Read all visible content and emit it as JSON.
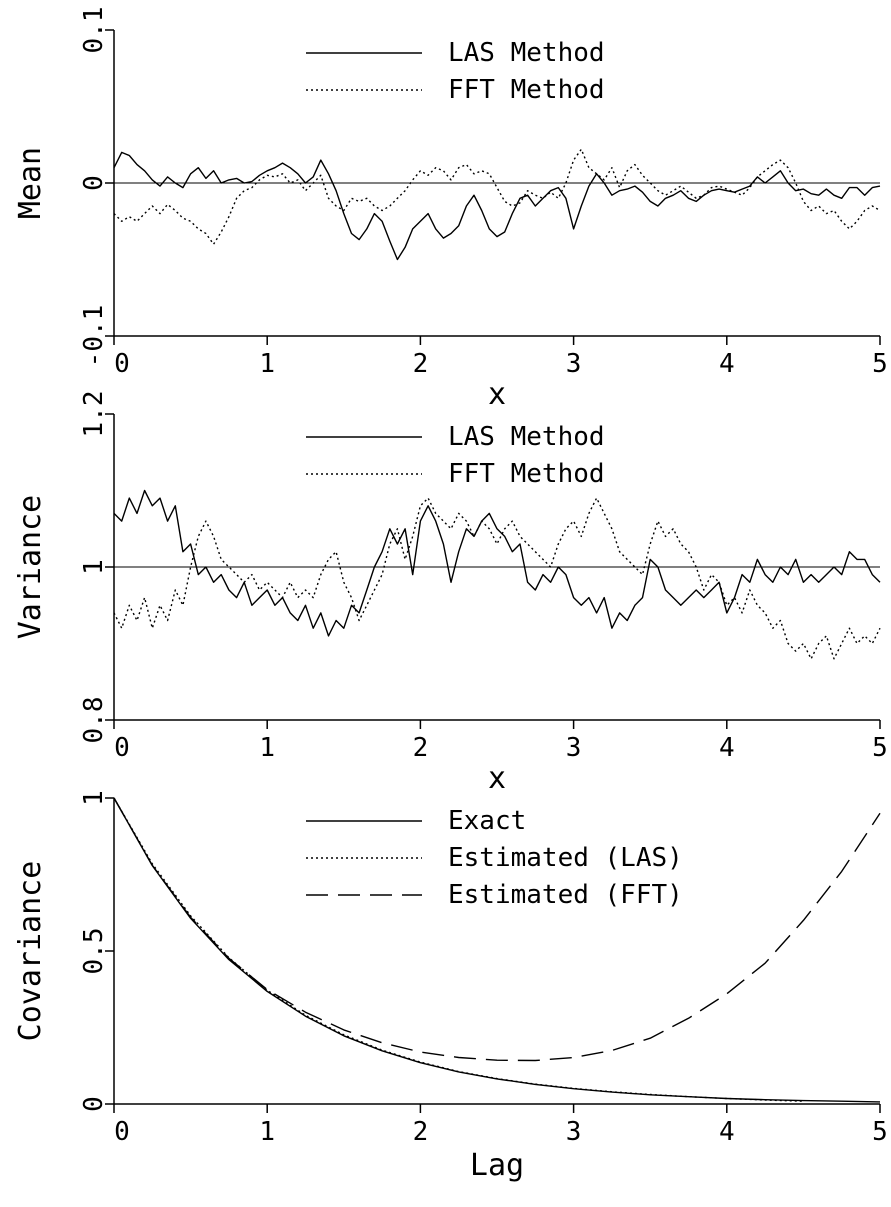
{
  "chart_data": [
    {
      "type": "line",
      "xlabel": "x",
      "ylabel": "Mean",
      "xlim": [
        0,
        5
      ],
      "ylim": [
        -0.1,
        0.1
      ],
      "xticks": [
        "0",
        "1",
        "2",
        "3",
        "4",
        "5"
      ],
      "yticks": [
        "-0.1",
        "0",
        "0.1"
      ],
      "reference_line": 0,
      "legend_position": "top-center",
      "series": [
        {
          "name": "LAS Method",
          "style": "solid",
          "x": [
            0,
            0.05,
            0.1,
            0.15,
            0.2,
            0.25,
            0.3,
            0.35,
            0.4,
            0.45,
            0.5,
            0.55,
            0.6,
            0.65,
            0.7,
            0.75,
            0.8,
            0.85,
            0.9,
            0.95,
            1,
            1.05,
            1.1,
            1.15,
            1.2,
            1.25,
            1.3,
            1.35,
            1.4,
            1.45,
            1.5,
            1.55,
            1.6,
            1.65,
            1.7,
            1.75,
            1.8,
            1.85,
            1.9,
            1.95,
            2,
            2.05,
            2.1,
            2.15,
            2.2,
            2.25,
            2.3,
            2.35,
            2.4,
            2.45,
            2.5,
            2.55,
            2.6,
            2.65,
            2.7,
            2.75,
            2.8,
            2.85,
            2.9,
            2.95,
            3,
            3.05,
            3.1,
            3.15,
            3.2,
            3.25,
            3.3,
            3.35,
            3.4,
            3.45,
            3.5,
            3.55,
            3.6,
            3.65,
            3.7,
            3.75,
            3.8,
            3.85,
            3.9,
            3.95,
            4,
            4.05,
            4.1,
            4.15,
            4.2,
            4.25,
            4.3,
            4.35,
            4.4,
            4.45,
            4.5,
            4.55,
            4.6,
            4.65,
            4.7,
            4.75,
            4.8,
            4.85,
            4.9,
            4.95,
            5
          ],
          "values": [
            0.01,
            0.02,
            0.018,
            0.012,
            0.008,
            0.002,
            -0.002,
            0.004,
            0.0,
            -0.003,
            0.006,
            0.01,
            0.003,
            0.008,
            0.0,
            0.002,
            0.003,
            0.0,
            0.001,
            0.005,
            0.008,
            0.01,
            0.013,
            0.01,
            0.006,
            0.0,
            0.004,
            0.015,
            0.006,
            -0.005,
            -0.02,
            -0.033,
            -0.037,
            -0.03,
            -0.02,
            -0.025,
            -0.038,
            -0.05,
            -0.042,
            -0.03,
            -0.025,
            -0.02,
            -0.03,
            -0.036,
            -0.033,
            -0.028,
            -0.015,
            -0.008,
            -0.018,
            -0.03,
            -0.035,
            -0.032,
            -0.02,
            -0.01,
            -0.008,
            -0.015,
            -0.01,
            -0.005,
            -0.003,
            -0.01,
            -0.03,
            -0.015,
            -0.002,
            0.006,
            0.0,
            -0.008,
            -0.005,
            -0.004,
            -0.002,
            -0.006,
            -0.012,
            -0.015,
            -0.01,
            -0.008,
            -0.005,
            -0.01,
            -0.012,
            -0.008,
            -0.005,
            -0.004,
            -0.005,
            -0.006,
            -0.004,
            -0.002,
            0.004,
            0.0,
            0.004,
            0.008,
            0.0,
            -0.005,
            -0.004,
            -0.007,
            -0.008,
            -0.004,
            -0.008,
            -0.01,
            -0.003,
            -0.003,
            -0.008,
            -0.003,
            -0.002
          ]
        },
        {
          "name": "FFT Method",
          "style": "dotted",
          "x": [
            0,
            0.05,
            0.1,
            0.15,
            0.2,
            0.25,
            0.3,
            0.35,
            0.4,
            0.45,
            0.5,
            0.55,
            0.6,
            0.65,
            0.7,
            0.75,
            0.8,
            0.85,
            0.9,
            0.95,
            1,
            1.05,
            1.1,
            1.15,
            1.2,
            1.25,
            1.3,
            1.35,
            1.4,
            1.45,
            1.5,
            1.55,
            1.6,
            1.65,
            1.7,
            1.75,
            1.8,
            1.85,
            1.9,
            1.95,
            2,
            2.05,
            2.1,
            2.15,
            2.2,
            2.25,
            2.3,
            2.35,
            2.4,
            2.45,
            2.5,
            2.55,
            2.6,
            2.65,
            2.7,
            2.75,
            2.8,
            2.85,
            2.9,
            2.95,
            3,
            3.05,
            3.1,
            3.15,
            3.2,
            3.25,
            3.3,
            3.35,
            3.4,
            3.45,
            3.5,
            3.55,
            3.6,
            3.65,
            3.7,
            3.75,
            3.8,
            3.85,
            3.9,
            3.95,
            4,
            4.05,
            4.1,
            4.15,
            4.2,
            4.25,
            4.3,
            4.35,
            4.4,
            4.45,
            4.5,
            4.55,
            4.6,
            4.65,
            4.7,
            4.75,
            4.8,
            4.85,
            4.9,
            4.95,
            5
          ],
          "values": [
            -0.02,
            -0.025,
            -0.022,
            -0.025,
            -0.02,
            -0.015,
            -0.02,
            -0.014,
            -0.018,
            -0.023,
            -0.025,
            -0.03,
            -0.033,
            -0.04,
            -0.032,
            -0.022,
            -0.01,
            -0.005,
            -0.003,
            0.002,
            0.005,
            0.004,
            0.006,
            0.0,
            0.002,
            -0.005,
            0.0,
            0.005,
            -0.01,
            -0.015,
            -0.018,
            -0.01,
            -0.012,
            -0.01,
            -0.015,
            -0.018,
            -0.015,
            -0.01,
            -0.005,
            0.002,
            0.008,
            0.005,
            0.01,
            0.008,
            0.002,
            0.01,
            0.012,
            0.006,
            0.008,
            0.006,
            -0.003,
            -0.012,
            -0.015,
            -0.013,
            -0.005,
            -0.008,
            -0.01,
            -0.006,
            -0.01,
            0.0,
            0.015,
            0.022,
            0.01,
            0.006,
            0.002,
            0.01,
            -0.003,
            0.008,
            0.012,
            0.005,
            0.0,
            -0.005,
            -0.008,
            -0.005,
            -0.002,
            -0.006,
            -0.01,
            -0.008,
            -0.003,
            -0.002,
            -0.004,
            -0.006,
            -0.008,
            -0.003,
            0.004,
            0.008,
            0.012,
            0.015,
            0.01,
            0.0,
            -0.012,
            -0.018,
            -0.015,
            -0.02,
            -0.018,
            -0.025,
            -0.03,
            -0.025,
            -0.018,
            -0.015,
            -0.018
          ]
        }
      ]
    },
    {
      "type": "line",
      "xlabel": "x",
      "ylabel": "Variance",
      "xlim": [
        0,
        5
      ],
      "ylim": [
        0.8,
        1.2
      ],
      "xticks": [
        "0",
        "1",
        "2",
        "3",
        "4",
        "5"
      ],
      "yticks": [
        "0.8",
        "1",
        "1.2"
      ],
      "reference_line": 1,
      "legend_position": "top-center",
      "series": [
        {
          "name": "LAS Method",
          "style": "solid",
          "x": [
            0,
            0.05,
            0.1,
            0.15,
            0.2,
            0.25,
            0.3,
            0.35,
            0.4,
            0.45,
            0.5,
            0.55,
            0.6,
            0.65,
            0.7,
            0.75,
            0.8,
            0.85,
            0.9,
            0.95,
            1,
            1.05,
            1.1,
            1.15,
            1.2,
            1.25,
            1.3,
            1.35,
            1.4,
            1.45,
            1.5,
            1.55,
            1.6,
            1.65,
            1.7,
            1.75,
            1.8,
            1.85,
            1.9,
            1.95,
            2,
            2.05,
            2.1,
            2.15,
            2.2,
            2.25,
            2.3,
            2.35,
            2.4,
            2.45,
            2.5,
            2.55,
            2.6,
            2.65,
            2.7,
            2.75,
            2.8,
            2.85,
            2.9,
            2.95,
            3,
            3.05,
            3.1,
            3.15,
            3.2,
            3.25,
            3.3,
            3.35,
            3.4,
            3.45,
            3.5,
            3.55,
            3.6,
            3.65,
            3.7,
            3.75,
            3.8,
            3.85,
            3.9,
            3.95,
            4,
            4.05,
            4.1,
            4.15,
            4.2,
            4.25,
            4.3,
            4.35,
            4.4,
            4.45,
            4.5,
            4.55,
            4.6,
            4.65,
            4.7,
            4.75,
            4.8,
            4.85,
            4.9,
            4.95,
            5
          ],
          "values": [
            1.07,
            1.06,
            1.09,
            1.07,
            1.1,
            1.08,
            1.09,
            1.06,
            1.08,
            1.02,
            1.03,
            0.99,
            1.0,
            0.98,
            0.99,
            0.97,
            0.96,
            0.98,
            0.95,
            0.96,
            0.97,
            0.95,
            0.96,
            0.94,
            0.93,
            0.95,
            0.92,
            0.94,
            0.91,
            0.93,
            0.92,
            0.95,
            0.94,
            0.97,
            1.0,
            1.02,
            1.05,
            1.03,
            1.05,
            0.99,
            1.06,
            1.08,
            1.06,
            1.03,
            0.98,
            1.02,
            1.05,
            1.04,
            1.06,
            1.07,
            1.05,
            1.04,
            1.02,
            1.03,
            0.98,
            0.97,
            0.99,
            0.98,
            1.0,
            0.99,
            0.96,
            0.95,
            0.96,
            0.94,
            0.96,
            0.92,
            0.94,
            0.93,
            0.95,
            0.96,
            1.01,
            1.0,
            0.97,
            0.96,
            0.95,
            0.96,
            0.97,
            0.96,
            0.97,
            0.98,
            0.94,
            0.96,
            0.99,
            0.98,
            1.01,
            0.99,
            0.98,
            1.0,
            0.99,
            1.01,
            0.98,
            0.99,
            0.98,
            0.99,
            1.0,
            0.99,
            1.02,
            1.01,
            1.01,
            0.99,
            0.98
          ]
        },
        {
          "name": "FFT Method",
          "style": "dotted",
          "x": [
            0,
            0.05,
            0.1,
            0.15,
            0.2,
            0.25,
            0.3,
            0.35,
            0.4,
            0.45,
            0.5,
            0.55,
            0.6,
            0.65,
            0.7,
            0.75,
            0.8,
            0.85,
            0.9,
            0.95,
            1,
            1.05,
            1.1,
            1.15,
            1.2,
            1.25,
            1.3,
            1.35,
            1.4,
            1.45,
            1.5,
            1.55,
            1.6,
            1.65,
            1.7,
            1.75,
            1.8,
            1.85,
            1.9,
            1.95,
            2,
            2.05,
            2.1,
            2.15,
            2.2,
            2.25,
            2.3,
            2.35,
            2.4,
            2.45,
            2.5,
            2.55,
            2.6,
            2.65,
            2.7,
            2.75,
            2.8,
            2.85,
            2.9,
            2.95,
            3,
            3.05,
            3.1,
            3.15,
            3.2,
            3.25,
            3.3,
            3.35,
            3.4,
            3.45,
            3.5,
            3.55,
            3.6,
            3.65,
            3.7,
            3.75,
            3.8,
            3.85,
            3.9,
            3.95,
            4,
            4.05,
            4.1,
            4.15,
            4.2,
            4.25,
            4.3,
            4.35,
            4.4,
            4.45,
            4.5,
            4.55,
            4.6,
            4.65,
            4.7,
            4.75,
            4.8,
            4.85,
            4.9,
            4.95,
            5
          ],
          "values": [
            0.94,
            0.92,
            0.95,
            0.93,
            0.96,
            0.92,
            0.95,
            0.93,
            0.97,
            0.95,
            1.0,
            1.04,
            1.06,
            1.04,
            1.01,
            1.0,
            0.99,
            0.98,
            0.99,
            0.97,
            0.98,
            0.97,
            0.96,
            0.98,
            0.96,
            0.97,
            0.96,
            0.99,
            1.01,
            1.02,
            0.98,
            0.96,
            0.93,
            0.95,
            0.97,
            0.99,
            1.03,
            1.05,
            1.01,
            1.04,
            1.08,
            1.09,
            1.07,
            1.06,
            1.05,
            1.07,
            1.06,
            1.04,
            1.06,
            1.05,
            1.03,
            1.05,
            1.06,
            1.04,
            1.03,
            1.02,
            1.01,
            1.0,
            1.03,
            1.05,
            1.06,
            1.04,
            1.07,
            1.09,
            1.07,
            1.05,
            1.02,
            1.01,
            1.0,
            0.99,
            1.03,
            1.06,
            1.04,
            1.05,
            1.03,
            1.02,
            1.0,
            0.97,
            0.99,
            0.98,
            0.95,
            0.96,
            0.94,
            0.97,
            0.95,
            0.94,
            0.92,
            0.93,
            0.9,
            0.89,
            0.9,
            0.88,
            0.9,
            0.91,
            0.88,
            0.9,
            0.92,
            0.9,
            0.91,
            0.9,
            0.92
          ]
        }
      ]
    },
    {
      "type": "line",
      "xlabel": "Lag",
      "ylabel": "Covariance",
      "xlim": [
        0,
        5
      ],
      "ylim": [
        0,
        1
      ],
      "xticks": [
        "0",
        "1",
        "2",
        "3",
        "4",
        "5"
      ],
      "yticks": [
        "0",
        "0.5",
        "1"
      ],
      "legend_position": "top-center",
      "series": [
        {
          "name": "Exact",
          "style": "solid",
          "x": [
            0,
            0.25,
            0.5,
            0.75,
            1,
            1.25,
            1.5,
            1.75,
            2,
            2.25,
            2.5,
            2.75,
            3,
            3.25,
            3.5,
            3.75,
            4,
            4.25,
            4.5,
            4.75,
            5
          ],
          "values": [
            1.0,
            0.779,
            0.607,
            0.472,
            0.368,
            0.287,
            0.223,
            0.174,
            0.135,
            0.105,
            0.082,
            0.064,
            0.05,
            0.039,
            0.03,
            0.024,
            0.018,
            0.014,
            0.011,
            0.009,
            0.007
          ]
        },
        {
          "name": "Estimated (LAS)",
          "style": "dotted",
          "x": [
            0,
            0.25,
            0.5,
            0.75,
            1,
            1.25,
            1.5,
            1.75,
            2,
            2.25,
            2.5,
            2.75,
            3,
            3.25,
            3.5,
            3.75,
            4,
            4.25,
            4.5
          ],
          "values": [
            1.0,
            0.785,
            0.615,
            0.478,
            0.372,
            0.29,
            0.226,
            0.176,
            0.137,
            0.106,
            0.083,
            0.065,
            0.051,
            0.04,
            0.031,
            0.024,
            0.018,
            0.013,
            0.009
          ]
        },
        {
          "name": "Estimated (FFT)",
          "style": "dashed",
          "x": [
            0,
            0.25,
            0.5,
            0.75,
            1,
            1.25,
            1.5,
            1.75,
            2,
            2.25,
            2.5,
            2.75,
            3,
            3.25,
            3.5,
            3.75,
            4,
            4.25,
            4.5,
            4.75,
            5
          ],
          "values": [
            1.0,
            0.78,
            0.61,
            0.476,
            0.374,
            0.3,
            0.242,
            0.2,
            0.17,
            0.152,
            0.143,
            0.142,
            0.152,
            0.175,
            0.215,
            0.28,
            0.36,
            0.46,
            0.6,
            0.76,
            0.95
          ]
        }
      ]
    }
  ]
}
